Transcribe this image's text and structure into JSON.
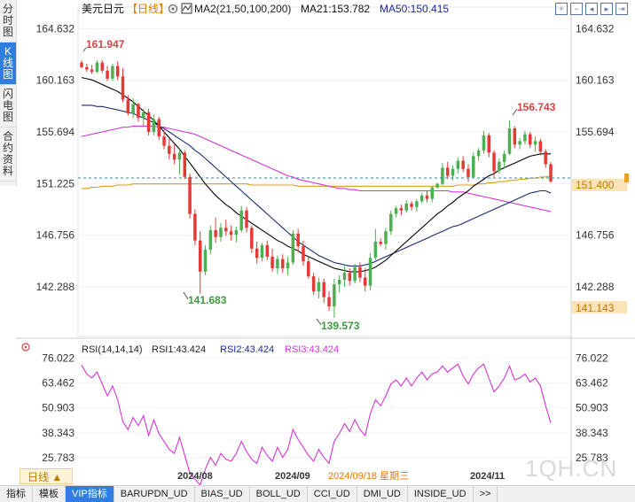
{
  "left_tabs": [
    {
      "label": "分时图",
      "active": false
    },
    {
      "label": "K线图",
      "active": true
    },
    {
      "label": "闪电图",
      "active": false
    },
    {
      "label": "合约资料",
      "active": false
    }
  ],
  "header": {
    "symbol": "美元日元",
    "period_tag": "【日线】",
    "ma_label": "MA2(21,50,100,200)",
    "ma21_label": "MA21:153.782",
    "ma50_label": "MA50:150.415"
  },
  "toolbar_icons": [
    "zoom-in-icon",
    "zoom-out-icon",
    "move-left-icon",
    "move-right-icon",
    "exit-icon"
  ],
  "rsi_header": {
    "title": "RSI(14,14,14)",
    "rsi1": "RSI1:43.424",
    "rsi2": "RSI2:43.424",
    "rsi3": "RSI3:43.424"
  },
  "price_ticks": [
    "164.632",
    "160.163",
    "155.694",
    "151.225",
    "146.756",
    "142.288"
  ],
  "rsi_ticks": [
    "76.022",
    "63.462",
    "50.903",
    "38.343",
    "25.783"
  ],
  "price_markers": {
    "dashed_level": "151.225",
    "current_price": "151.400",
    "ma_value": "141.143"
  },
  "annotations": {
    "high_1": "161.947",
    "low_1": "141.683",
    "low_2": "139.573",
    "high_2": "156.743"
  },
  "x_labels": [
    "2024/08",
    "2024/09",
    "2024/09/18 星期三",
    "2024/11"
  ],
  "period_button": "日线 ▲",
  "watermark": "1QH.CN",
  "bottom_tabs": [
    {
      "label": "指标",
      "active": false
    },
    {
      "label": "模板",
      "active": false
    },
    {
      "label": "VIP指标",
      "active": true
    },
    {
      "label": "BARUPDN_UD",
      "active": false
    },
    {
      "label": "BIAS_UD",
      "active": false
    },
    {
      "label": "BOLL_UD",
      "active": false
    },
    {
      "label": "CCI_UD",
      "active": false
    },
    {
      "label": "DMI_UD",
      "active": false
    },
    {
      "label": "INSIDE_UD",
      "active": false
    },
    {
      "label": ">>",
      "active": false
    }
  ],
  "colors": {
    "up": "#4caf50",
    "down": "#e53935",
    "ma21": "#000000",
    "ma50": "#1a2a6c",
    "ma100": "#d633d6",
    "ma200": "#d4a017",
    "rsi": "#d633d6"
  },
  "chart_data": {
    "type": "candlestick",
    "title": "美元日元 日线",
    "y_range": [
      138.0,
      166.5
    ],
    "rsi_range": [
      20.0,
      78.0
    ],
    "candles": [
      [
        161.7,
        161.9,
        161.2,
        161.3
      ],
      [
        161.3,
        161.6,
        160.9,
        161.1
      ],
      [
        161.1,
        161.5,
        160.7,
        160.9
      ],
      [
        160.9,
        161.9,
        160.8,
        161.7
      ],
      [
        161.7,
        161.9,
        160.8,
        161.0
      ],
      [
        161.0,
        161.4,
        160.1,
        160.3
      ],
      [
        160.3,
        161.6,
        160.1,
        161.4
      ],
      [
        161.4,
        161.8,
        160.2,
        160.5
      ],
      [
        160.5,
        161.2,
        158.3,
        158.5
      ],
      [
        158.5,
        158.9,
        157.1,
        157.3
      ],
      [
        157.3,
        158.6,
        156.9,
        158.1
      ],
      [
        158.1,
        158.2,
        156.6,
        156.9
      ],
      [
        156.9,
        157.7,
        156.2,
        157.4
      ],
      [
        157.4,
        157.7,
        155.4,
        155.7
      ],
      [
        155.7,
        157.2,
        155.4,
        156.8
      ],
      [
        156.8,
        157.0,
        155.0,
        155.3
      ],
      [
        155.3,
        155.9,
        154.2,
        154.5
      ],
      [
        154.5,
        155.1,
        153.3,
        153.8
      ],
      [
        153.8,
        154.6,
        152.9,
        153.3
      ],
      [
        153.3,
        154.2,
        152.0,
        153.9
      ],
      [
        153.9,
        154.1,
        151.6,
        151.8
      ],
      [
        151.8,
        152.1,
        148.2,
        148.6
      ],
      [
        148.6,
        149.0,
        145.9,
        146.3
      ],
      [
        146.3,
        147.1,
        141.7,
        143.6
      ],
      [
        143.6,
        145.9,
        143.3,
        145.5
      ],
      [
        145.5,
        147.6,
        145.1,
        147.2
      ],
      [
        147.2,
        148.3,
        146.1,
        146.6
      ],
      [
        146.6,
        147.8,
        146.2,
        147.4
      ],
      [
        147.4,
        148.1,
        146.7,
        147.1
      ],
      [
        147.1,
        147.6,
        146.3,
        146.8
      ],
      [
        146.8,
        147.5,
        146.1,
        147.2
      ],
      [
        147.2,
        149.3,
        147.0,
        148.9
      ],
      [
        148.9,
        149.2,
        147.0,
        147.4
      ],
      [
        147.4,
        147.6,
        145.2,
        145.6
      ],
      [
        145.6,
        146.2,
        144.3,
        144.8
      ],
      [
        144.8,
        146.1,
        144.5,
        145.9
      ],
      [
        145.9,
        146.3,
        144.6,
        144.9
      ],
      [
        144.9,
        145.6,
        143.6,
        143.9
      ],
      [
        143.9,
        145.0,
        143.4,
        144.7
      ],
      [
        144.7,
        145.1,
        143.5,
        143.9
      ],
      [
        143.9,
        144.9,
        143.3,
        144.4
      ],
      [
        144.4,
        147.2,
        144.2,
        146.9
      ],
      [
        146.9,
        147.3,
        145.4,
        145.8
      ],
      [
        145.8,
        146.3,
        144.1,
        144.5
      ],
      [
        144.5,
        144.9,
        143.0,
        143.2
      ],
      [
        143.2,
        143.5,
        141.6,
        141.9
      ],
      [
        141.9,
        143.1,
        141.3,
        142.7
      ],
      [
        142.7,
        143.0,
        140.9,
        141.4
      ],
      [
        141.4,
        141.9,
        140.2,
        140.6
      ],
      [
        140.6,
        143.0,
        139.6,
        142.5
      ],
      [
        142.5,
        143.3,
        141.8,
        142.9
      ],
      [
        142.9,
        144.1,
        142.3,
        143.5
      ],
      [
        143.5,
        143.9,
        142.4,
        142.8
      ],
      [
        142.8,
        144.3,
        142.6,
        144.0
      ],
      [
        144.0,
        144.4,
        142.7,
        143.1
      ],
      [
        143.1,
        143.9,
        141.9,
        142.4
      ],
      [
        142.4,
        145.2,
        142.0,
        144.8
      ],
      [
        144.8,
        147.3,
        144.6,
        146.2
      ],
      [
        146.2,
        146.5,
        145.8,
        146.0
      ],
      [
        146.0,
        147.4,
        145.5,
        147.1
      ],
      [
        147.1,
        148.9,
        146.8,
        148.6
      ],
      [
        148.6,
        149.3,
        148.3,
        149.1
      ],
      [
        149.1,
        149.4,
        148.5,
        148.9
      ],
      [
        148.9,
        149.8,
        148.7,
        149.5
      ],
      [
        149.5,
        149.7,
        148.9,
        149.2
      ],
      [
        149.2,
        149.9,
        148.8,
        149.7
      ],
      [
        149.7,
        150.4,
        149.5,
        150.2
      ],
      [
        150.2,
        150.6,
        149.6,
        149.9
      ],
      [
        149.9,
        151.0,
        149.6,
        150.9
      ],
      [
        150.9,
        151.3,
        150.8,
        151.2
      ],
      [
        151.2,
        153.0,
        151.1,
        152.6
      ],
      [
        152.6,
        153.1,
        151.6,
        151.9
      ],
      [
        151.9,
        152.8,
        151.5,
        152.5
      ],
      [
        152.5,
        153.5,
        152.1,
        153.2
      ],
      [
        153.2,
        153.6,
        152.2,
        152.5
      ],
      [
        152.5,
        152.9,
        151.4,
        151.8
      ],
      [
        151.8,
        153.9,
        151.7,
        153.6
      ],
      [
        153.6,
        154.3,
        153.2,
        154.1
      ],
      [
        154.1,
        155.8,
        153.8,
        155.4
      ],
      [
        155.4,
        155.6,
        153.5,
        153.9
      ],
      [
        153.9,
        154.1,
        151.8,
        152.3
      ],
      [
        152.3,
        153.4,
        152.1,
        153.1
      ],
      [
        153.1,
        154.1,
        152.5,
        153.8
      ],
      [
        153.8,
        156.7,
        153.7,
        156.0
      ],
      [
        156.0,
        156.2,
        154.3,
        154.6
      ],
      [
        154.6,
        155.2,
        154.2,
        154.9
      ],
      [
        154.9,
        155.8,
        154.6,
        155.5
      ],
      [
        155.5,
        155.7,
        154.3,
        154.6
      ],
      [
        154.6,
        155.3,
        154.0,
        154.9
      ],
      [
        154.9,
        155.1,
        153.7,
        154.0
      ],
      [
        154.0,
        154.2,
        152.6,
        152.9
      ],
      [
        152.9,
        153.1,
        151.3,
        151.4
      ]
    ],
    "rsi": [
      72.5,
      68,
      66,
      69,
      63,
      57,
      62,
      55,
      44,
      40,
      46,
      42,
      47,
      37,
      45,
      38,
      34,
      30,
      28,
      36,
      27,
      18,
      15,
      12,
      20,
      26,
      22,
      28,
      25,
      24,
      28,
      34,
      29,
      25,
      23,
      31,
      27,
      24,
      31,
      26,
      30,
      40,
      35,
      31,
      27,
      24,
      30,
      26,
      23,
      34,
      38,
      43,
      39,
      45,
      40,
      37,
      48,
      55,
      52,
      57,
      63,
      65,
      62,
      66,
      62,
      66,
      69,
      65,
      68,
      69,
      72,
      69,
      71,
      73,
      67,
      63,
      68,
      71,
      73,
      66,
      59,
      62,
      66,
      72,
      65,
      66,
      68,
      64,
      66,
      62,
      52,
      43.4
    ],
    "ma21": [
      160.4,
      160.3,
      160.2,
      160.0,
      159.8,
      159.6,
      159.4,
      159.2,
      158.9,
      158.6,
      158.3,
      157.9,
      157.5,
      157.1,
      156.7,
      156.2,
      155.7,
      155.2,
      154.7,
      154.2,
      153.6,
      153.0,
      152.4,
      151.8,
      151.2,
      150.7,
      150.2,
      149.8,
      149.4,
      149.1,
      148.7,
      148.4,
      148.1,
      147.8,
      147.5,
      147.2,
      146.9,
      146.6,
      146.3,
      146.1,
      145.8,
      145.6,
      145.4,
      145.1,
      144.9,
      144.7,
      144.5,
      144.3,
      144.1,
      143.9,
      143.8,
      143.7,
      143.6,
      143.6,
      143.6,
      143.7,
      143.8,
      144.0,
      144.3,
      144.6,
      145.0,
      145.4,
      145.8,
      146.2,
      146.6,
      147.0,
      147.4,
      147.8,
      148.2,
      148.6,
      148.9,
      149.3,
      149.6,
      150.0,
      150.3,
      150.6,
      151.0,
      151.3,
      151.6,
      151.9,
      152.1,
      152.4,
      152.6,
      152.8,
      153.0,
      153.2,
      153.4,
      153.6,
      153.7,
      153.8,
      153.8,
      153.8
    ],
    "ma50": [
      158.0,
      158.0,
      158.0,
      157.9,
      157.9,
      157.8,
      157.7,
      157.6,
      157.5,
      157.4,
      157.3,
      157.1,
      156.9,
      156.7,
      156.5,
      156.2,
      156.0,
      155.7,
      155.4,
      155.1,
      154.8,
      154.5,
      154.1,
      153.8,
      153.4,
      153.0,
      152.6,
      152.2,
      151.8,
      151.4,
      151.0,
      150.6,
      150.2,
      149.8,
      149.4,
      149.0,
      148.6,
      148.2,
      147.8,
      147.4,
      147.0,
      146.6,
      146.2,
      145.9,
      145.6,
      145.3,
      145.0,
      144.8,
      144.6,
      144.4,
      144.3,
      144.2,
      144.1,
      144.1,
      144.1,
      144.2,
      144.3,
      144.5,
      144.7,
      144.9,
      145.1,
      145.3,
      145.5,
      145.7,
      145.9,
      146.1,
      146.3,
      146.5,
      146.7,
      146.9,
      147.1,
      147.3,
      147.5,
      147.6,
      147.8,
      148.0,
      148.2,
      148.4,
      148.6,
      148.8,
      149.0,
      149.2,
      149.4,
      149.6,
      149.8,
      150.0,
      150.2,
      150.4,
      150.5,
      150.6,
      150.6,
      150.4
    ],
    "ma100": [
      155.3,
      155.4,
      155.5,
      155.6,
      155.7,
      155.8,
      155.9,
      156.0,
      156.1,
      156.1,
      156.2,
      156.2,
      156.2,
      156.2,
      156.2,
      156.1,
      156.1,
      156.0,
      155.9,
      155.8,
      155.7,
      155.6,
      155.5,
      155.3,
      155.1,
      154.9,
      154.7,
      154.5,
      154.3,
      154.1,
      153.9,
      153.7,
      153.5,
      153.3,
      153.1,
      152.9,
      152.7,
      152.5,
      152.3,
      152.1,
      151.9,
      151.8,
      151.6,
      151.5,
      151.4,
      151.3,
      151.2,
      151.1,
      151.0,
      150.9,
      150.8,
      150.8,
      150.7,
      150.7,
      150.6,
      150.6,
      150.6,
      150.6,
      150.6,
      150.6,
      150.6,
      150.6,
      150.6,
      150.6,
      150.6,
      150.6,
      150.6,
      150.6,
      150.6,
      150.6,
      150.6,
      150.6,
      150.5,
      150.5,
      150.5,
      150.4,
      150.3,
      150.2,
      150.1,
      150.0,
      149.9,
      149.8,
      149.7,
      149.6,
      149.5,
      149.4,
      149.3,
      149.2,
      149.1,
      149.0,
      148.9,
      148.8
    ],
    "ma200": [
      150.8,
      150.8,
      150.9,
      150.9,
      151.0,
      151.0,
      151.0,
      151.1,
      151.1,
      151.1,
      151.2,
      151.2,
      151.2,
      151.2,
      151.2,
      151.2,
      151.2,
      151.2,
      151.2,
      151.2,
      151.2,
      151.2,
      151.2,
      151.2,
      151.2,
      151.2,
      151.2,
      151.2,
      151.2,
      151.2,
      151.2,
      151.2,
      151.2,
      151.1,
      151.1,
      151.1,
      151.1,
      151.1,
      151.1,
      151.1,
      151.1,
      151.1,
      151.0,
      151.0,
      151.0,
      151.0,
      151.0,
      151.0,
      151.0,
      151.0,
      151.0,
      151.0,
      151.0,
      151.0,
      151.0,
      151.0,
      151.0,
      151.0,
      151.0,
      151.0,
      151.0,
      151.0,
      151.0,
      151.0,
      151.0,
      151.0,
      151.0,
      151.0,
      151.0,
      151.0,
      151.0,
      151.0,
      151.0,
      151.1,
      151.1,
      151.1,
      151.1,
      151.2,
      151.2,
      151.3,
      151.3,
      151.4,
      151.4,
      151.5,
      151.5,
      151.6,
      151.6,
      151.7,
      151.7,
      151.8,
      151.8,
      151.9
    ]
  }
}
